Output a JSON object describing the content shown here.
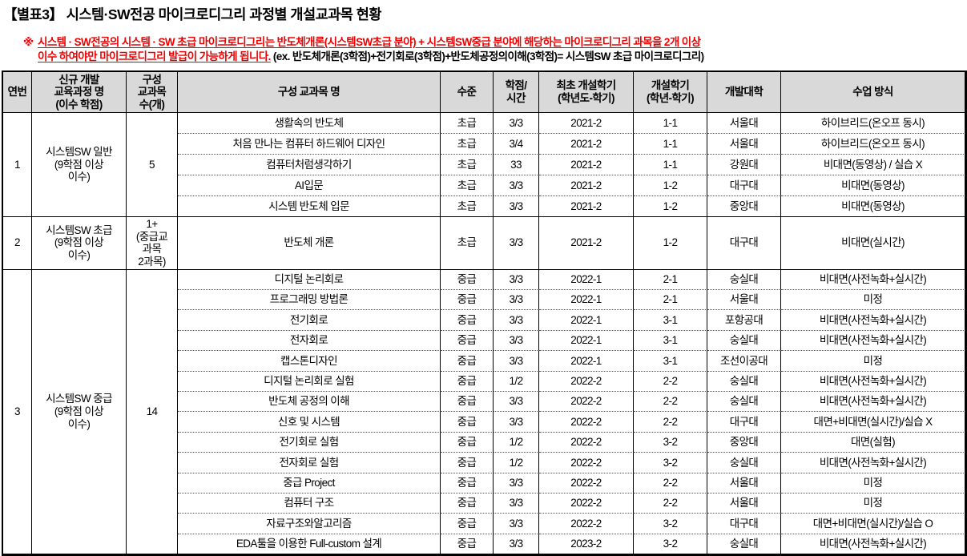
{
  "title": "【별표3】 시스템·SW전공 마이크로디그리 과정별 개설교과목 현황",
  "note": {
    "mark": "※",
    "line1": "시스템 · SW전공의 시스템 · SW 초급 마이크로디그리는 반도체개론(시스템SW초급 분야) + 시스템SW중급 분야에 해당하는 마이크로디그리 과목을 2개 이상",
    "line2_red": "이수 하여야만 마이크로디그리 발급이 가능하게 됩니다.",
    "line2_black": " (ex. 반도체개론(3학점)+전기회로(3학점)+반도체공정의이해(3학점)= 시스템SW 초급 마이크로디그리)"
  },
  "table": {
    "headers": [
      "연번",
      "신규 개발\n교육과정 명\n(이수 학점)",
      "구성\n교과목\n수(개)",
      "구성 교과목 명",
      "수준",
      "학점/\n시간",
      "최초 개설학기\n(학년도-학기)",
      "개설학기\n(학년-학기)",
      "개발대학",
      "수업 방식"
    ],
    "groups": [
      {
        "no": "1",
        "program": "시스템SW 일반\n(9학점 이상\n이수)",
        "count": "5",
        "rows": [
          {
            "name": "생활속의 반도체",
            "level": "초급",
            "credit": "3/3",
            "first_term": "2021-2",
            "term": "1-1",
            "university": "서울대",
            "method": "하이브리드(온오프 동시)"
          },
          {
            "name": "처음 만나는 컴퓨터 하드웨어 디자인",
            "level": "초급",
            "credit": "3/4",
            "first_term": "2021-2",
            "term": "1-1",
            "university": "서울대",
            "method": "하이브리드(온오프 동시)"
          },
          {
            "name": "컴퓨터처럼생각하기",
            "level": "초급",
            "credit": "33",
            "first_term": "2021-2",
            "term": "1-1",
            "university": "강원대",
            "method": "비대면(동영상) / 실습 X"
          },
          {
            "name": "AI입문",
            "level": "초급",
            "credit": "3/3",
            "first_term": "2021-2",
            "term": "1-2",
            "university": "대구대",
            "method": "비대면(동영상)"
          },
          {
            "name": "시스템 반도체 입문",
            "level": "초급",
            "credit": "3/3",
            "first_term": "2021-2",
            "term": "1-2",
            "university": "중앙대",
            "method": "비대면(동영상)"
          }
        ]
      },
      {
        "no": "2",
        "program": "시스템SW 초급\n(9학점 이상\n이수)",
        "count": "1+\n(중급교\n과목\n2과목)",
        "rows": [
          {
            "name": "반도체 개론",
            "level": "초급",
            "credit": "3/3",
            "first_term": "2021-2",
            "term": "1-2",
            "university": "대구대",
            "method": "비대면(실시간)"
          }
        ]
      },
      {
        "no": "3",
        "program": "시스템SW 중급\n(9학점 이상\n이수)",
        "count": "14",
        "rows": [
          {
            "name": "디지털 논리회로",
            "level": "중급",
            "credit": "3/3",
            "first_term": "2022-1",
            "term": "2-1",
            "university": "숭실대",
            "method": "비대면(사전녹화+실시간)"
          },
          {
            "name": "프로그래밍 방법론",
            "level": "중급",
            "credit": "3/3",
            "first_term": "2022-1",
            "term": "2-1",
            "university": "서울대",
            "method": "미정"
          },
          {
            "name": "전기회로",
            "level": "중급",
            "credit": "3/3",
            "first_term": "2022-1",
            "term": "3-1",
            "university": "포항공대",
            "method": "비대면(사전녹화+실시간)"
          },
          {
            "name": "전자회로",
            "level": "중급",
            "credit": "3/3",
            "first_term": "2022-1",
            "term": "3-1",
            "university": "숭실대",
            "method": "비대면(사전녹화+실시간)"
          },
          {
            "name": "캡스톤디자인",
            "level": "중급",
            "credit": "3/3",
            "first_term": "2022-1",
            "term": "3-1",
            "university": "조선이공대",
            "method": "미정"
          },
          {
            "name": "디지털 논리회로 실험",
            "level": "중급",
            "credit": "1/2",
            "first_term": "2022-2",
            "term": "2-2",
            "university": "숭실대",
            "method": "비대면(사전녹화+실시간)"
          },
          {
            "name": "반도체 공정의 이해",
            "level": "중급",
            "credit": "3/3",
            "first_term": "2022-2",
            "term": "2-2",
            "university": "숭실대",
            "method": "비대면(사전녹화+실시간)"
          },
          {
            "name": "신호 및 시스템",
            "level": "중급",
            "credit": "3/3",
            "first_term": "2022-2",
            "term": "2-2",
            "university": "대구대",
            "method": "대면+비대면(실시간)/실습 X"
          },
          {
            "name": "전기회로 실험",
            "level": "중급",
            "credit": "1/2",
            "first_term": "2022-2",
            "term": "3-2",
            "university": "중앙대",
            "method": "대면(실험)"
          },
          {
            "name": "전자회로 실험",
            "level": "중급",
            "credit": "1/2",
            "first_term": "2022-2",
            "term": "3-2",
            "university": "숭실대",
            "method": "비대면(사전녹화+실시간)"
          },
          {
            "name": "중급 Project",
            "level": "중급",
            "credit": "3/3",
            "first_term": "2022-2",
            "term": "2-2",
            "university": "서울대",
            "method": "미정"
          },
          {
            "name": "컴퓨터 구조",
            "level": "중급",
            "credit": "3/3",
            "first_term": "2022-2",
            "term": "2-2",
            "university": "서울대",
            "method": "미정"
          },
          {
            "name": "자료구조와알고리즘",
            "level": "중급",
            "credit": "3/3",
            "first_term": "2022-2",
            "term": "3-2",
            "university": "대구대",
            "method": "대면+비대면(실시간)/실습 O"
          },
          {
            "name": "EDA툴을 이용한 Full-custom 설계",
            "level": "중급",
            "credit": "3/3",
            "first_term": "2023-2",
            "term": "3-2",
            "university": "숭실대",
            "method": "비대면(사전녹화+실시간)"
          }
        ]
      }
    ]
  }
}
